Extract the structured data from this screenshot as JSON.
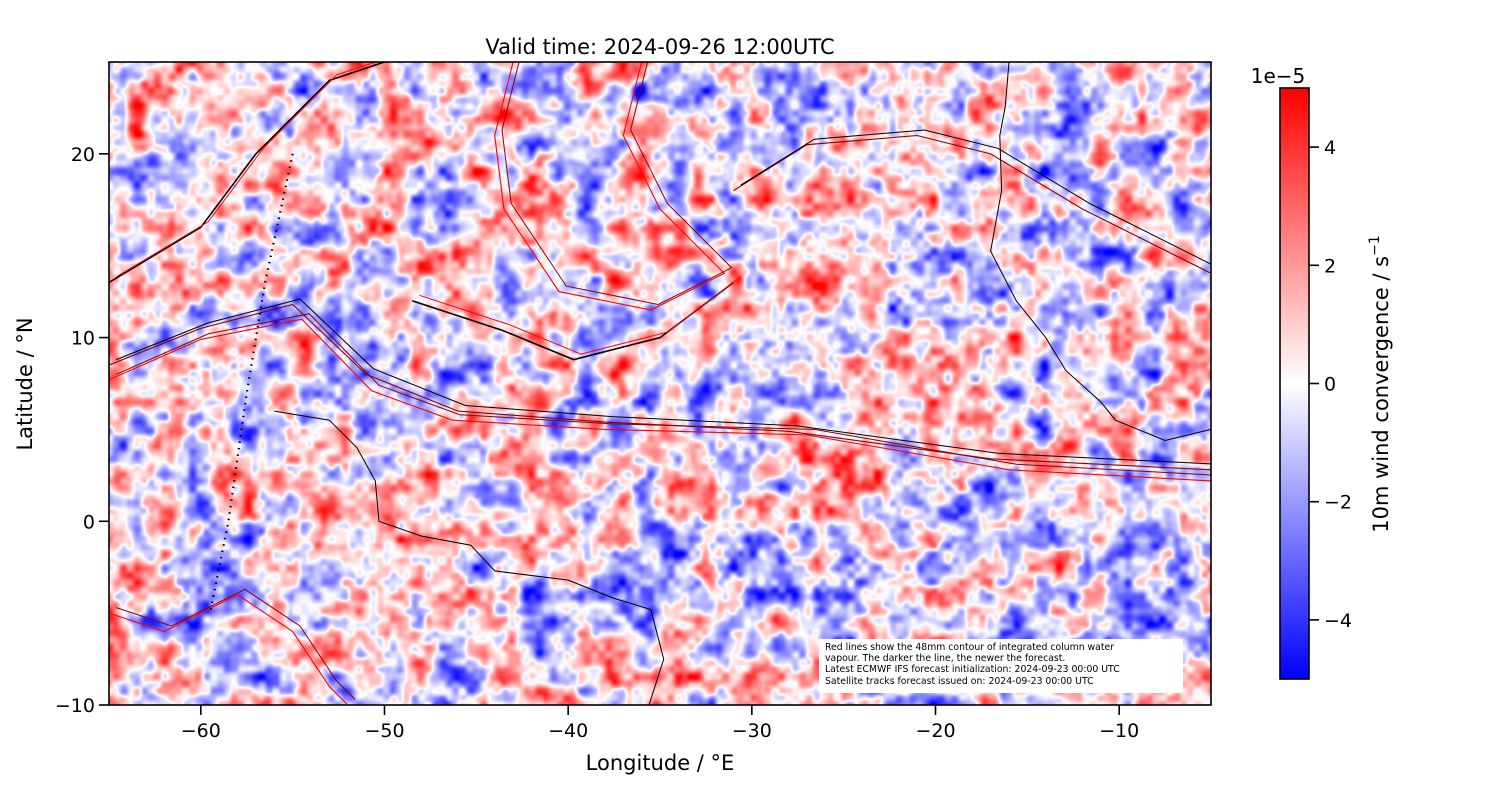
{
  "chart_data": {
    "type": "heatmap",
    "title": "Valid time: 2024-09-26 12:00UTC",
    "xlabel": "Longitude / °E",
    "ylabel": "Latitude / °N",
    "xlim": [
      -65,
      -5
    ],
    "ylim": [
      -10,
      25
    ],
    "xticks": [
      -60,
      -50,
      -40,
      -30,
      -20,
      -10
    ],
    "xtick_labels": [
      "−60",
      "−50",
      "−40",
      "−30",
      "−20",
      "−10"
    ],
    "yticks": [
      -10,
      0,
      10,
      20
    ],
    "ytick_labels": [
      "−10",
      "0",
      "10",
      "20"
    ],
    "grid": false,
    "colorbar": {
      "label": "10m wind convergence / s",
      "label_superscript": "−1",
      "multiplier": "1e−5",
      "range": [
        -5,
        5
      ],
      "ticks": [
        -4,
        -2,
        0,
        2,
        4
      ],
      "tick_labels": [
        "−4",
        "−2",
        "0",
        "2",
        "4"
      ],
      "colormap": "bwr",
      "colors": {
        "min": "#0000ff",
        "mid": "#ffffff",
        "max": "#ff0000"
      }
    },
    "overlays": {
      "coastline_color": "#000000",
      "contour_colors": [
        "#ff0000",
        "#8b0000",
        "#000000"
      ],
      "coastlines": [
        [
          [
            -56,
            6
          ],
          [
            -53,
            5.5
          ],
          [
            -51.5,
            4
          ],
          [
            -50.5,
            2.2
          ],
          [
            -50.3,
            0
          ],
          [
            -48,
            -0.8
          ],
          [
            -45.3,
            -1.3
          ],
          [
            -44,
            -2.7
          ],
          [
            -40,
            -3.2
          ],
          [
            -37.5,
            -4.2
          ],
          [
            -35.5,
            -4.8
          ],
          [
            -34.8,
            -7.5
          ],
          [
            -35.6,
            -10
          ]
        ],
        [
          [
            -16,
            25
          ],
          [
            -16.2,
            22.6
          ],
          [
            -16.5,
            21
          ],
          [
            -16.4,
            18
          ],
          [
            -17,
            14.7
          ],
          [
            -15.6,
            12
          ],
          [
            -14,
            10
          ],
          [
            -12.9,
            8.2
          ],
          [
            -11,
            6.5
          ],
          [
            -10.2,
            5.5
          ],
          [
            -7.5,
            4.4
          ],
          [
            -5,
            5
          ]
        ]
      ],
      "contours_48mm": [
        [
          [
            -65,
            7.7
          ],
          [
            -60,
            9.9
          ],
          [
            -54.5,
            11
          ],
          [
            -50.7,
            7.1
          ],
          [
            -46.3,
            5.5
          ],
          [
            -38,
            5
          ],
          [
            -27,
            4.7
          ],
          [
            -16,
            2.8
          ],
          [
            -5,
            2.2
          ]
        ],
        [
          [
            -65,
            8.5
          ],
          [
            -60,
            10.5
          ],
          [
            -55,
            11.8
          ],
          [
            -51,
            8
          ],
          [
            -46,
            6
          ],
          [
            -38,
            5.4
          ],
          [
            -28,
            4.9
          ],
          [
            -17,
            3.4
          ],
          [
            -5,
            2.8
          ]
        ],
        [
          [
            -48.5,
            12
          ],
          [
            -43.6,
            10.4
          ],
          [
            -39.7,
            8.8
          ],
          [
            -35,
            10
          ],
          [
            -31,
            13
          ]
        ],
        [
          [
            -43,
            25
          ],
          [
            -44,
            21
          ],
          [
            -43.5,
            17
          ],
          [
            -40.5,
            12.5
          ],
          [
            -35.5,
            11.5
          ],
          [
            -31.5,
            13.5
          ],
          [
            -35,
            17
          ],
          [
            -37,
            21
          ],
          [
            -36,
            25
          ]
        ],
        [
          [
            -31,
            18
          ],
          [
            -27,
            20.5
          ],
          [
            -21,
            21
          ],
          [
            -17,
            20
          ],
          [
            -12,
            17
          ],
          [
            -8,
            15
          ],
          [
            -5,
            13.5
          ]
        ],
        [
          [
            -65,
            13
          ],
          [
            -60,
            16
          ],
          [
            -57,
            20
          ],
          [
            -53,
            24
          ],
          [
            -50,
            25
          ]
        ],
        [
          [
            -65,
            -5
          ],
          [
            -62,
            -6
          ],
          [
            -58,
            -4
          ],
          [
            -55,
            -6
          ],
          [
            -53,
            -9
          ],
          [
            -52,
            -10
          ]
        ]
      ],
      "satellite_track": [
        [
          -55,
          20
        ],
        [
          -56.5,
          13
        ],
        [
          -57.5,
          7
        ],
        [
          -58.5,
          0
        ],
        [
          -59.5,
          -5
        ]
      ]
    },
    "annotation": [
      "Red lines show the 48mm contour of integrated column water",
      "vapour. The darker the line, the newer the forecast.",
      "Latest ECMWF IFS forecast initialization: 2024-09-23 00:00 UTC",
      "Satellite tracks forecast issued on: 2024-09-23 00:00 UTC"
    ]
  }
}
